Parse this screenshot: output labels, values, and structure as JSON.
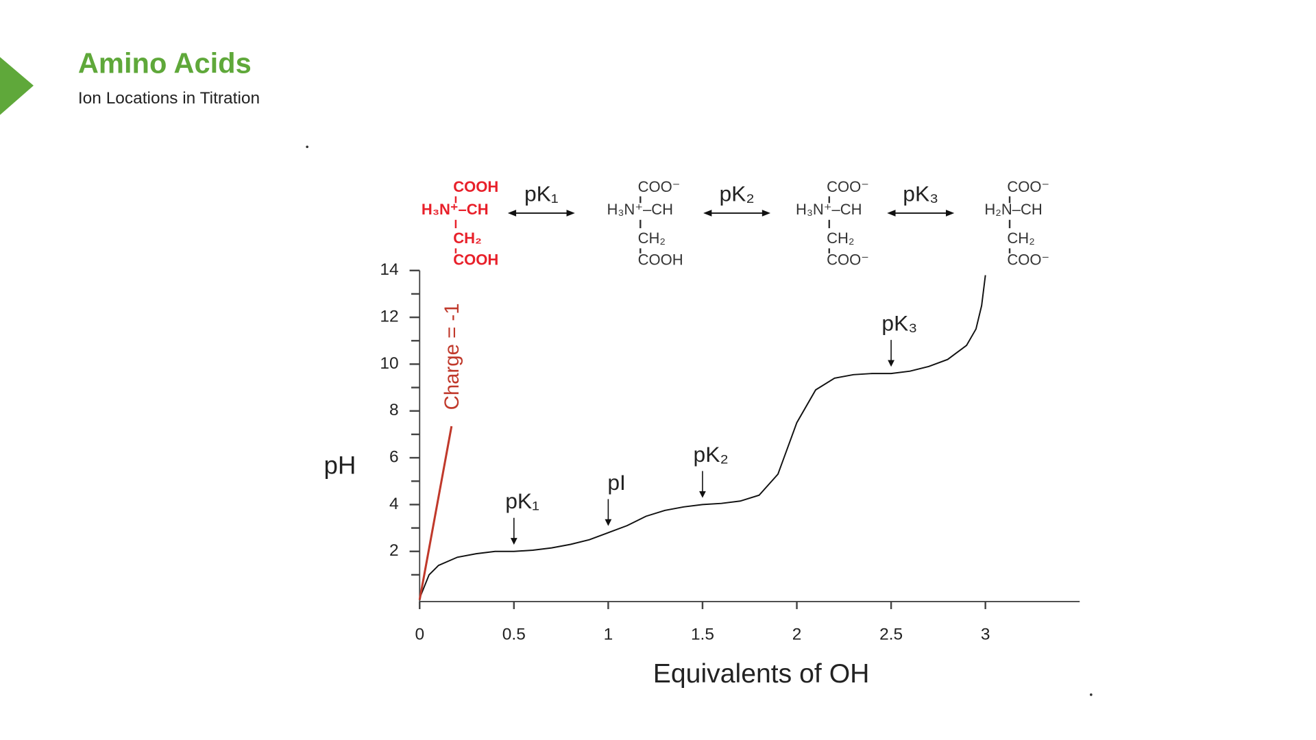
{
  "header": {
    "title": "Amino Acids",
    "subtitle": "Ion Locations in Titration"
  },
  "scheme": {
    "structures": [
      {
        "lines": [
          "COOH",
          "H₃N⁺–CH",
          "CH₂",
          "COOH"
        ],
        "color": "#e8202a"
      },
      {
        "lines": [
          "COO⁻",
          "H₃N⁺–CH",
          "CH₂",
          "COOH"
        ],
        "color": "#333333"
      },
      {
        "lines": [
          "COO⁻",
          "H₃N⁺–CH",
          "CH₂",
          "COO⁻"
        ],
        "color": "#333333"
      },
      {
        "lines": [
          "COO⁻",
          "H₂N–CH",
          "CH₂",
          "COO⁻"
        ],
        "color": "#333333"
      }
    ],
    "equilibria": [
      "pK₁",
      "pK₂",
      "pK₃"
    ]
  },
  "chart_data": {
    "type": "line",
    "x_label": "Equivalents of OH",
    "y_label": "pH",
    "x": [
      0,
      0.05,
      0.1,
      0.2,
      0.3,
      0.4,
      0.5,
      0.6,
      0.7,
      0.8,
      0.9,
      1.0,
      1.1,
      1.2,
      1.3,
      1.4,
      1.5,
      1.6,
      1.7,
      1.8,
      1.9,
      2.0,
      2.1,
      2.2,
      2.3,
      2.4,
      2.5,
      2.6,
      2.7,
      2.8,
      2.9,
      2.95,
      2.98,
      3.0
    ],
    "values": [
      0,
      1.0,
      1.4,
      1.75,
      1.9,
      2.0,
      2.0,
      2.05,
      2.15,
      2.3,
      2.5,
      2.8,
      3.1,
      3.5,
      3.75,
      3.9,
      4.0,
      4.05,
      4.15,
      4.4,
      5.3,
      7.5,
      8.9,
      9.4,
      9.55,
      9.6,
      9.6,
      9.7,
      9.9,
      10.2,
      10.8,
      11.5,
      12.5,
      13.8
    ],
    "color": "#111111",
    "xlim": [
      0,
      3.5
    ],
    "ylim": [
      0,
      14
    ],
    "xticks": [
      0,
      0.5,
      1,
      1.5,
      2,
      2.5,
      3
    ],
    "yticks": [
      2,
      4,
      6,
      8,
      10,
      12,
      14
    ],
    "yminorticks": [
      1,
      3,
      5,
      7,
      9,
      11,
      13
    ],
    "annotations": [
      {
        "text": "pK₁",
        "x": 0.5
      },
      {
        "text": "pI",
        "x": 1
      },
      {
        "text": "pK₂",
        "x": 1.5
      },
      {
        "text": "pK₃",
        "x": 2.5
      }
    ],
    "charge_annotation": {
      "text": "Charge = -1",
      "color": "#c0392b"
    }
  }
}
